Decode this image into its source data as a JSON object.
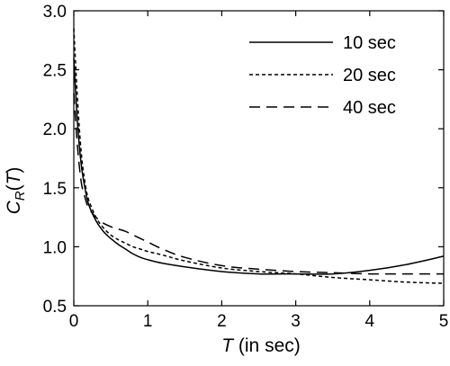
{
  "chart_data": {
    "type": "line",
    "xlabel": {
      "var": "T",
      "rest": " (in sec)"
    },
    "ylabel": {
      "base": "C",
      "sub": "R",
      "open": "(",
      "var": "T",
      "close": ")"
    },
    "xlim": [
      0,
      5
    ],
    "ylim": [
      0.5,
      3.0
    ],
    "xticks": [
      0,
      1,
      2,
      3,
      4,
      5
    ],
    "xtick_labels": [
      "0",
      "1",
      "2",
      "3",
      "4",
      "5"
    ],
    "yticks": [
      0.5,
      1.0,
      1.5,
      2.0,
      2.5,
      3.0
    ],
    "ytick_labels": [
      "0.5",
      "1.0",
      "1.5",
      "2.0",
      "2.5",
      "3.0"
    ],
    "grid": false,
    "legend_position": "top-right",
    "series": [
      {
        "name": "10 sec",
        "dash": "solid",
        "x": [
          0.0,
          0.05,
          0.1,
          0.15,
          0.2,
          0.3,
          0.4,
          0.5,
          0.6,
          0.7,
          0.8,
          0.9,
          1.0,
          1.2,
          1.5,
          2.0,
          2.5,
          3.0,
          3.5,
          4.0,
          4.5,
          5.0
        ],
        "y": [
          2.6,
          2.05,
          1.7,
          1.5,
          1.36,
          1.22,
          1.13,
          1.07,
          1.02,
          0.98,
          0.94,
          0.91,
          0.89,
          0.86,
          0.83,
          0.79,
          0.77,
          0.77,
          0.77,
          0.8,
          0.85,
          0.92
        ]
      },
      {
        "name": "20 sec",
        "dash": "short-dash",
        "x": [
          0.0,
          0.05,
          0.1,
          0.15,
          0.2,
          0.3,
          0.4,
          0.5,
          0.6,
          0.7,
          0.8,
          0.9,
          1.0,
          1.2,
          1.5,
          2.0,
          2.5,
          3.0,
          3.5,
          4.0,
          4.5,
          5.0
        ],
        "y": [
          2.85,
          2.25,
          1.8,
          1.55,
          1.4,
          1.25,
          1.16,
          1.1,
          1.06,
          1.03,
          1.0,
          0.98,
          0.96,
          0.93,
          0.88,
          0.82,
          0.79,
          0.77,
          0.74,
          0.72,
          0.7,
          0.69
        ]
      },
      {
        "name": "40 sec",
        "dash": "long-dash",
        "x": [
          0.0,
          0.05,
          0.1,
          0.15,
          0.2,
          0.3,
          0.4,
          0.5,
          0.6,
          0.7,
          0.8,
          0.9,
          1.0,
          1.2,
          1.5,
          2.0,
          2.5,
          3.0,
          3.5,
          4.0,
          4.5,
          5.0
        ],
        "y": [
          2.3,
          1.85,
          1.55,
          1.42,
          1.33,
          1.25,
          1.2,
          1.17,
          1.15,
          1.13,
          1.1,
          1.07,
          1.04,
          0.98,
          0.91,
          0.84,
          0.81,
          0.79,
          0.78,
          0.77,
          0.77,
          0.77
        ]
      }
    ]
  }
}
